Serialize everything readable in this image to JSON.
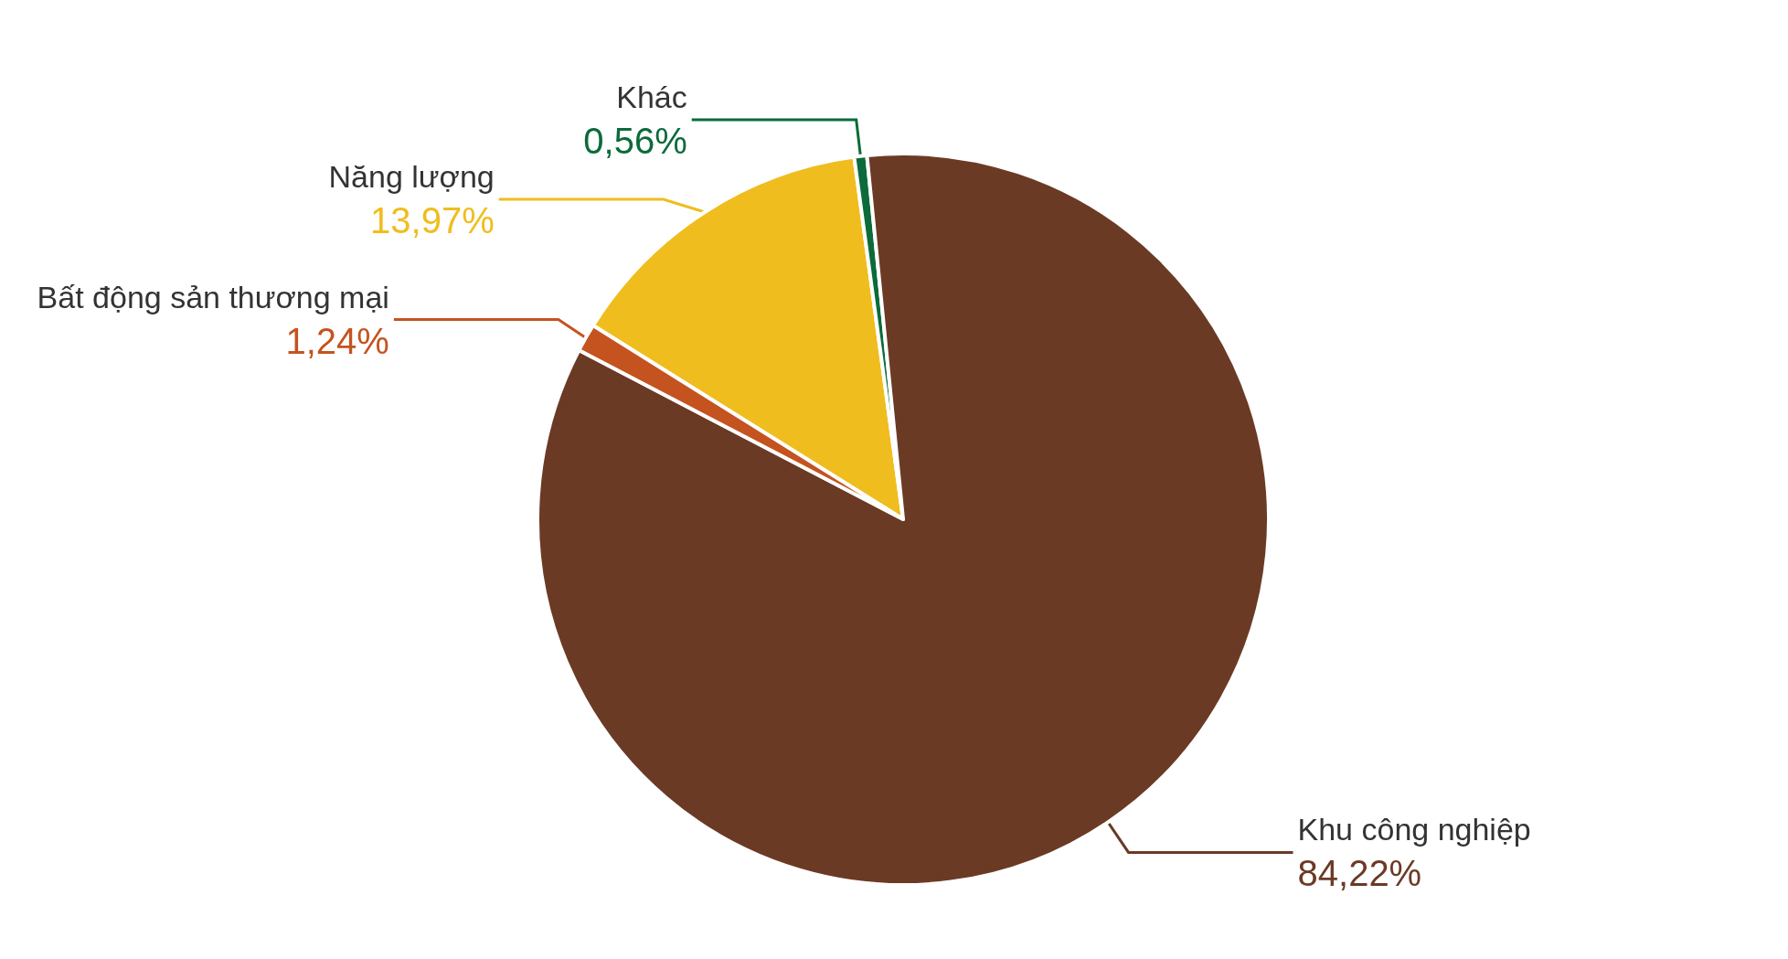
{
  "chart_data": {
    "type": "pie",
    "categories": [
      "Năng lượng",
      "Khác",
      "Khu công nghiệp",
      "Bất động sản thương mại"
    ],
    "values": [
      13.97,
      0.56,
      84.22,
      1.24
    ],
    "value_labels": [
      "13,97%",
      "0,56%",
      "84,22%",
      "1,24%"
    ],
    "colors": [
      "#f0bd1e",
      "#0b6b3a",
      "#6b3a25",
      "#c4531f"
    ],
    "legend": false
  }
}
